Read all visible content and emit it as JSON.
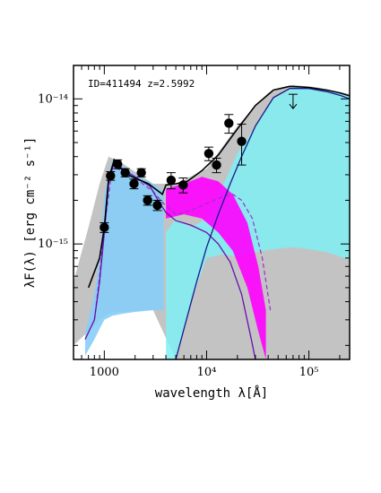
{
  "chart_data": {
    "type": "scatter",
    "annotation": "ID=411494  z=2.5992",
    "xlabel": "wavelength λ[Å]",
    "ylabel": "λF(λ) [erg cm⁻² s⁻¹]",
    "xscale": "log",
    "yscale": "log",
    "xlim": [
      500,
      250000
    ],
    "ylim": [
      1.6e-16,
      1.7e-14
    ],
    "x_ticks": [
      {
        "value": 1000,
        "label": "1000"
      },
      {
        "value": 10000,
        "label": "10⁴"
      },
      {
        "value": 100000,
        "label": "10⁵"
      }
    ],
    "y_ticks": [
      {
        "value": 1e-15,
        "label": "10⁻¹⁵"
      },
      {
        "value": 1e-14,
        "label": "10⁻¹⁴"
      }
    ],
    "grid": false,
    "photometry": [
      {
        "x": 1000,
        "y": 1.3e-15,
        "err": 1e-16
      },
      {
        "x": 1150,
        "y": 2.95e-15,
        "err": 2e-16
      },
      {
        "x": 1350,
        "y": 3.55e-15,
        "err": 2.5e-16
      },
      {
        "x": 1600,
        "y": 3.1e-15,
        "err": 2e-16
      },
      {
        "x": 1950,
        "y": 2.6e-15,
        "err": 2e-16
      },
      {
        "x": 2300,
        "y": 3.1e-15,
        "err": 2e-16
      },
      {
        "x": 2650,
        "y": 2e-15,
        "err": 1.5e-16
      },
      {
        "x": 3300,
        "y": 1.85e-15,
        "err": 1.5e-16
      },
      {
        "x": 4500,
        "y": 2.75e-15,
        "err": 3.5e-16
      },
      {
        "x": 5900,
        "y": 2.55e-15,
        "err": 3e-16
      },
      {
        "x": 10500,
        "y": 4.2e-15,
        "err": 4.5e-16
      },
      {
        "x": 12500,
        "y": 3.5e-15,
        "err": 4e-16
      },
      {
        "x": 16500,
        "y": 6.8e-15,
        "err": 1e-15
      },
      {
        "x": 22000,
        "y": 5.1e-15,
        "err": 1.6e-15
      }
    ],
    "upper_limits": [
      {
        "x": 70000,
        "y": 9.2e-15
      }
    ],
    "total_model": [
      [
        700,
        5e-16
      ],
      [
        900,
        8e-16
      ],
      [
        1000,
        1.3e-15
      ],
      [
        1100,
        2.8e-15
      ],
      [
        1250,
        3.8e-15
      ],
      [
        1400,
        3.4e-15
      ],
      [
        1700,
        3e-15
      ],
      [
        2100,
        2.8e-15
      ],
      [
        2700,
        2.6e-15
      ],
      [
        3400,
        2.3e-15
      ],
      [
        3700,
        2.2e-15
      ],
      [
        4000,
        2.55e-15
      ],
      [
        5000,
        2.6e-15
      ],
      [
        6500,
        2.7e-15
      ],
      [
        9000,
        3.2e-15
      ],
      [
        13000,
        4.1e-15
      ],
      [
        20000,
        6.2e-15
      ],
      [
        30000,
        9e-15
      ],
      [
        45000,
        1.15e-14
      ],
      [
        65000,
        1.22e-14
      ],
      [
        100000,
        1.2e-14
      ],
      [
        150000,
        1.15e-14
      ],
      [
        200000,
        1.1e-14
      ],
      [
        250000,
        1.05e-14
      ]
    ],
    "stellar_model": [
      [
        650,
        2.2e-16
      ],
      [
        800,
        3e-16
      ],
      [
        900,
        5.5e-16
      ],
      [
        1000,
        1.2e-15
      ],
      [
        1100,
        2.6e-15
      ],
      [
        1250,
        3.7e-15
      ],
      [
        1500,
        3.3e-15
      ],
      [
        2000,
        2.9e-15
      ],
      [
        2800,
        2.5e-15
      ],
      [
        3500,
        1.9e-15
      ],
      [
        4000,
        1.65e-15
      ],
      [
        5000,
        1.45e-15
      ],
      [
        7000,
        1.35e-15
      ],
      [
        10000,
        1.2e-15
      ],
      [
        13000,
        1e-15
      ],
      [
        17000,
        7.5e-16
      ],
      [
        22000,
        4.5e-16
      ],
      [
        27000,
        2.3e-16
      ],
      [
        30000,
        1.6e-16
      ]
    ],
    "dust_model": [
      [
        5000,
        1.6e-16
      ],
      [
        6000,
        2.6e-16
      ],
      [
        8000,
        5.5e-16
      ],
      [
        10000,
        9.5e-16
      ],
      [
        13000,
        1.6e-15
      ],
      [
        17000,
        2.6e-15
      ],
      [
        22000,
        4e-15
      ],
      [
        30000,
        6.5e-15
      ],
      [
        45000,
        1.02e-14
      ],
      [
        65000,
        1.18e-14
      ],
      [
        100000,
        1.18e-14
      ],
      [
        150000,
        1.12e-14
      ],
      [
        200000,
        1.06e-14
      ],
      [
        250000,
        1e-14
      ]
    ],
    "stellar_band": [
      [
        650,
        1.7e-16,
        2.4e-16
      ],
      [
        800,
        2.2e-16,
        4.5e-16
      ],
      [
        900,
        2.6e-16,
        8e-16
      ],
      [
        1000,
        3e-16,
        2.2e-15
      ],
      [
        1200,
        3.2e-16,
        3.9e-15
      ],
      [
        1500,
        3.3e-16,
        3.5e-15
      ],
      [
        2000,
        3.4e-16,
        3e-15
      ],
      [
        3000,
        3.5e-16,
        2.6e-15
      ],
      [
        3800,
        3.5e-16,
        2.3e-15
      ]
    ],
    "dust_band": [
      [
        4000,
        1.6e-16,
        1.2e-15
      ],
      [
        5000,
        1.6e-16,
        1.5e-15
      ],
      [
        7000,
        4e-16,
        1.3e-15
      ],
      [
        10000,
        8e-16,
        1.5e-15
      ],
      [
        14000,
        8.5e-16,
        2.4e-15
      ],
      [
        20000,
        8.2e-16,
        4.2e-15
      ],
      [
        30000,
        8.8e-16,
        6.5e-15
      ],
      [
        45000,
        9.2e-16,
        1e-14
      ],
      [
        70000,
        9.5e-16,
        1.2e-14
      ],
      [
        100000,
        9.2e-16,
        1.2e-14
      ],
      [
        150000,
        8.8e-16,
        1.15e-14
      ],
      [
        200000,
        8.2e-16,
        1.1e-14
      ],
      [
        250000,
        7.8e-16,
        1.05e-14
      ]
    ],
    "grey_band": [
      [
        500,
        2e-16,
        5.5e-16
      ],
      [
        700,
        2.5e-16,
        1.3e-15
      ],
      [
        900,
        3e-16,
        2.6e-15
      ],
      [
        1100,
        3.3e-16,
        4e-15
      ],
      [
        1500,
        3.4e-16,
        3.6e-15
      ],
      [
        3000,
        3.5e-16,
        2.6e-15
      ],
      [
        5000,
        1.6e-16,
        2.6e-15
      ],
      [
        10000,
        1.6e-16,
        3.3e-15
      ],
      [
        20000,
        1.6e-16,
        6.5e-15
      ],
      [
        40000,
        1.6e-16,
        1.1e-14
      ],
      [
        70000,
        1.6e-16,
        1.25e-14
      ],
      [
        120000,
        1.6e-16,
        1.2e-14
      ],
      [
        250000,
        1.6e-16,
        1.08e-14
      ]
    ],
    "magenta_band": [
      [
        4000,
        1.5e-15,
        2.4e-15
      ],
      [
        6000,
        1.6e-15,
        2.6e-15
      ],
      [
        9000,
        1.5e-15,
        2.9e-15
      ],
      [
        13000,
        1.2e-15,
        2.7e-15
      ],
      [
        18000,
        9e-16,
        2.2e-15
      ],
      [
        25000,
        5e-16,
        1.4e-15
      ],
      [
        32000,
        2.5e-16,
        7e-16
      ],
      [
        38000,
        1.6e-16,
        3.5e-16
      ]
    ],
    "purple_dashed": [
      [
        800,
        3e-16
      ],
      [
        900,
        6e-16
      ],
      [
        1000,
        1.3e-15
      ],
      [
        1200,
        3.4e-15
      ],
      [
        1500,
        3.2e-15
      ],
      [
        2200,
        2.7e-15
      ],
      [
        3000,
        2.3e-15
      ],
      [
        3800,
        1.9e-15
      ],
      [
        5000,
        1.6e-15
      ],
      [
        7000,
        1.7e-15
      ],
      [
        10000,
        1.9e-15
      ],
      [
        14000,
        2.1e-15
      ],
      [
        18000,
        2.2e-15
      ],
      [
        22000,
        2e-15
      ],
      [
        28000,
        1.5e-15
      ],
      [
        35000,
        8e-16
      ],
      [
        42000,
        3.5e-16
      ]
    ],
    "colors": {
      "total_model": "#000000",
      "stellar_model": "#6a0dad",
      "dust_model": "#1a1a8c",
      "stellar_band": "#87cefa",
      "dust_band": "#7ff0f5",
      "grey_band": "#b8b8b8",
      "magenta_band": "#ff00ff",
      "purple_dashed": "#9932cc",
      "points": "#000000"
    }
  }
}
